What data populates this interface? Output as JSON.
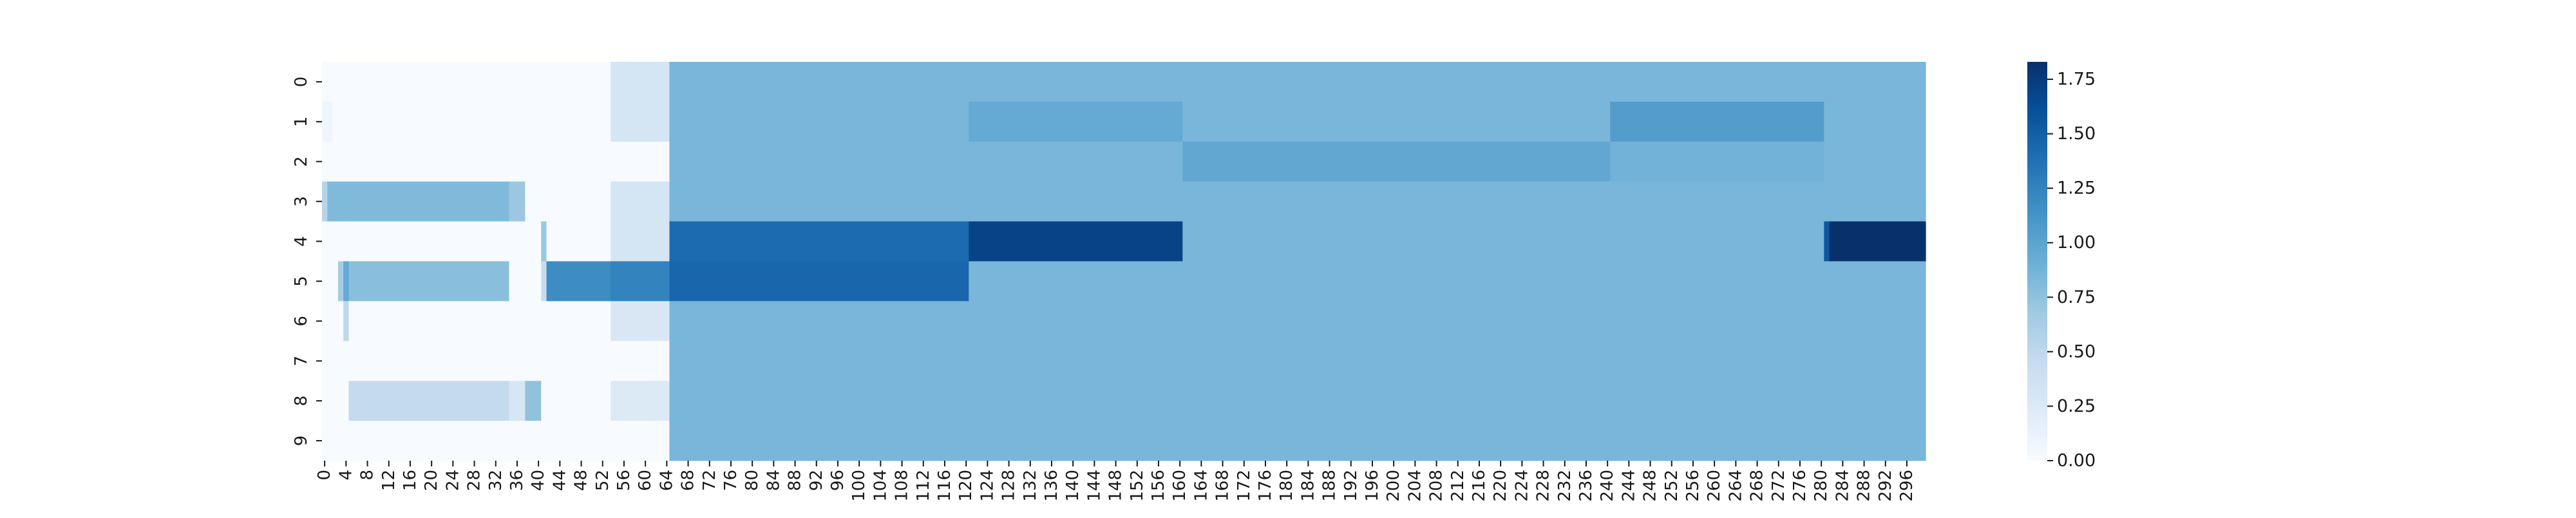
{
  "chart_data": {
    "type": "heatmap",
    "title": "",
    "xlabel": "",
    "ylabel": "",
    "rows": [
      "0",
      "1",
      "2",
      "3",
      "4",
      "5",
      "6",
      "7",
      "8",
      "9"
    ],
    "x_range": [
      0,
      299
    ],
    "x_tick_step": 4,
    "x_ticks": [
      "0",
      "4",
      "8",
      "12",
      "16",
      "20",
      "24",
      "28",
      "32",
      "36",
      "40",
      "44",
      "48",
      "52",
      "56",
      "60",
      "64",
      "68",
      "72",
      "76",
      "80",
      "84",
      "88",
      "92",
      "96",
      "100",
      "104",
      "108",
      "112",
      "116",
      "120",
      "124",
      "128",
      "132",
      "136",
      "140",
      "144",
      "148",
      "152",
      "156",
      "160",
      "164",
      "168",
      "172",
      "176",
      "180",
      "184",
      "188",
      "192",
      "196",
      "200",
      "204",
      "208",
      "212",
      "216",
      "220",
      "224",
      "228",
      "232",
      "236",
      "240",
      "244",
      "248",
      "252",
      "256",
      "260",
      "264",
      "268",
      "272",
      "276",
      "280",
      "284",
      "288",
      "292",
      "296"
    ],
    "colorscale": "Blues",
    "color_stops": [
      "#f7fbff",
      "#deebf7",
      "#c6dbef",
      "#9ecae1",
      "#6baed6",
      "#4292c6",
      "#2171b5",
      "#08519c",
      "#08306b"
    ],
    "vmin": 0,
    "vmax": 1.83,
    "colorbar_ticks": [
      "0.00",
      "0.25",
      "0.50",
      "0.75",
      "1.00",
      "1.25",
      "1.50",
      "1.75"
    ],
    "segments": [
      {
        "row": 0,
        "from": 0,
        "to": 54,
        "value": 0.0
      },
      {
        "row": 0,
        "from": 54,
        "to": 65,
        "value": 0.32
      },
      {
        "row": 0,
        "from": 65,
        "to": 300,
        "value": 0.85
      },
      {
        "row": 1,
        "from": 0,
        "to": 2,
        "value": 0.08
      },
      {
        "row": 1,
        "from": 2,
        "to": 54,
        "value": 0.0
      },
      {
        "row": 1,
        "from": 54,
        "to": 65,
        "value": 0.32
      },
      {
        "row": 1,
        "from": 65,
        "to": 121,
        "value": 0.85
      },
      {
        "row": 1,
        "from": 121,
        "to": 161,
        "value": 0.95
      },
      {
        "row": 1,
        "from": 161,
        "to": 241,
        "value": 0.85
      },
      {
        "row": 1,
        "from": 241,
        "to": 281,
        "value": 1.05
      },
      {
        "row": 1,
        "from": 281,
        "to": 300,
        "value": 0.85
      },
      {
        "row": 2,
        "from": 0,
        "to": 65,
        "value": 0.0
      },
      {
        "row": 2,
        "from": 65,
        "to": 161,
        "value": 0.85
      },
      {
        "row": 2,
        "from": 161,
        "to": 241,
        "value": 0.97
      },
      {
        "row": 2,
        "from": 241,
        "to": 281,
        "value": 0.88
      },
      {
        "row": 2,
        "from": 281,
        "to": 300,
        "value": 0.85
      },
      {
        "row": 3,
        "from": 0,
        "to": 1,
        "value": 0.55
      },
      {
        "row": 3,
        "from": 1,
        "to": 35,
        "value": 0.82
      },
      {
        "row": 3,
        "from": 35,
        "to": 38,
        "value": 0.7
      },
      {
        "row": 3,
        "from": 38,
        "to": 54,
        "value": 0.0
      },
      {
        "row": 3,
        "from": 54,
        "to": 65,
        "value": 0.32
      },
      {
        "row": 3,
        "from": 65,
        "to": 300,
        "value": 0.85
      },
      {
        "row": 4,
        "from": 0,
        "to": 41,
        "value": 0.0
      },
      {
        "row": 4,
        "from": 41,
        "to": 42,
        "value": 0.7
      },
      {
        "row": 4,
        "from": 42,
        "to": 54,
        "value": 0.0
      },
      {
        "row": 4,
        "from": 54,
        "to": 65,
        "value": 0.32
      },
      {
        "row": 4,
        "from": 65,
        "to": 121,
        "value": 1.42
      },
      {
        "row": 4,
        "from": 121,
        "to": 161,
        "value": 1.7
      },
      {
        "row": 4,
        "from": 161,
        "to": 281,
        "value": 0.85
      },
      {
        "row": 4,
        "from": 281,
        "to": 282,
        "value": 1.55
      },
      {
        "row": 4,
        "from": 282,
        "to": 300,
        "value": 1.83
      },
      {
        "row": 5,
        "from": 0,
        "to": 3,
        "value": 0.0
      },
      {
        "row": 5,
        "from": 3,
        "to": 4,
        "value": 0.65
      },
      {
        "row": 5,
        "from": 4,
        "to": 5,
        "value": 0.95
      },
      {
        "row": 5,
        "from": 5,
        "to": 35,
        "value": 0.78
      },
      {
        "row": 5,
        "from": 35,
        "to": 41,
        "value": 0.0
      },
      {
        "row": 5,
        "from": 41,
        "to": 42,
        "value": 0.45
      },
      {
        "row": 5,
        "from": 42,
        "to": 54,
        "value": 1.18
      },
      {
        "row": 5,
        "from": 54,
        "to": 65,
        "value": 1.25
      },
      {
        "row": 5,
        "from": 65,
        "to": 121,
        "value": 1.45
      },
      {
        "row": 5,
        "from": 121,
        "to": 300,
        "value": 0.85
      },
      {
        "row": 6,
        "from": 0,
        "to": 4,
        "value": 0.0
      },
      {
        "row": 6,
        "from": 4,
        "to": 5,
        "value": 0.5
      },
      {
        "row": 6,
        "from": 5,
        "to": 54,
        "value": 0.0
      },
      {
        "row": 6,
        "from": 54,
        "to": 65,
        "value": 0.28
      },
      {
        "row": 6,
        "from": 65,
        "to": 300,
        "value": 0.85
      },
      {
        "row": 7,
        "from": 0,
        "to": 65,
        "value": 0.0
      },
      {
        "row": 7,
        "from": 65,
        "to": 300,
        "value": 0.85
      },
      {
        "row": 8,
        "from": 0,
        "to": 5,
        "value": 0.0
      },
      {
        "row": 8,
        "from": 5,
        "to": 35,
        "value": 0.47
      },
      {
        "row": 8,
        "from": 35,
        "to": 38,
        "value": 0.3
      },
      {
        "row": 8,
        "from": 38,
        "to": 41,
        "value": 0.75
      },
      {
        "row": 8,
        "from": 41,
        "to": 54,
        "value": 0.0
      },
      {
        "row": 8,
        "from": 54,
        "to": 65,
        "value": 0.25
      },
      {
        "row": 8,
        "from": 65,
        "to": 300,
        "value": 0.85
      },
      {
        "row": 9,
        "from": 0,
        "to": 65,
        "value": 0.0
      },
      {
        "row": 9,
        "from": 65,
        "to": 300,
        "value": 0.85
      }
    ]
  }
}
